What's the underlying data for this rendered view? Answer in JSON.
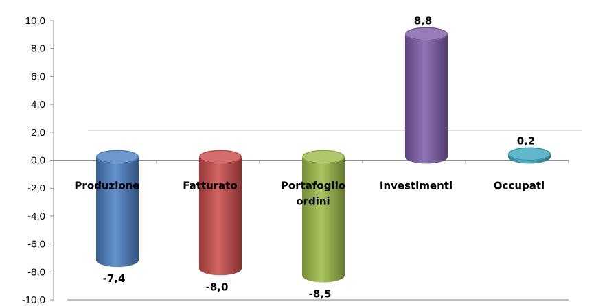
{
  "chart_data": {
    "type": "bar",
    "style": "3d-cylinder",
    "categories": [
      "Produzione",
      "Fatturato",
      "Portafoglio ordini",
      "Investimenti",
      "Occupati"
    ],
    "category_lines": [
      [
        "Produzione"
      ],
      [
        "Fatturato"
      ],
      [
        "Portafoglio",
        "ordini"
      ],
      [
        "Investimenti"
      ],
      [
        "Occupati"
      ]
    ],
    "values": [
      -7.4,
      -8.0,
      -8.5,
      8.8,
      0.2
    ],
    "value_labels": [
      "-7,4",
      "-8,0",
      "-8,5",
      "8,8",
      "0,2"
    ],
    "colors": [
      "#4a7fc3",
      "#c94a48",
      "#9bbb45",
      "#7c5ca8",
      "#3aa6bd"
    ],
    "ylim": [
      -10,
      10
    ],
    "y_ticks": [
      10,
      8,
      6,
      4,
      2,
      0,
      -2,
      -4,
      -6,
      -8,
      -10
    ],
    "y_tick_labels": [
      "10,0",
      "8,0",
      "6,0",
      "4,0",
      "2,0",
      "0,0",
      "-2,0",
      "-4,0",
      "-6,0",
      "-8,0",
      "-10,0"
    ],
    "grid": false,
    "title": "",
    "xlabel": "",
    "ylabel": ""
  }
}
